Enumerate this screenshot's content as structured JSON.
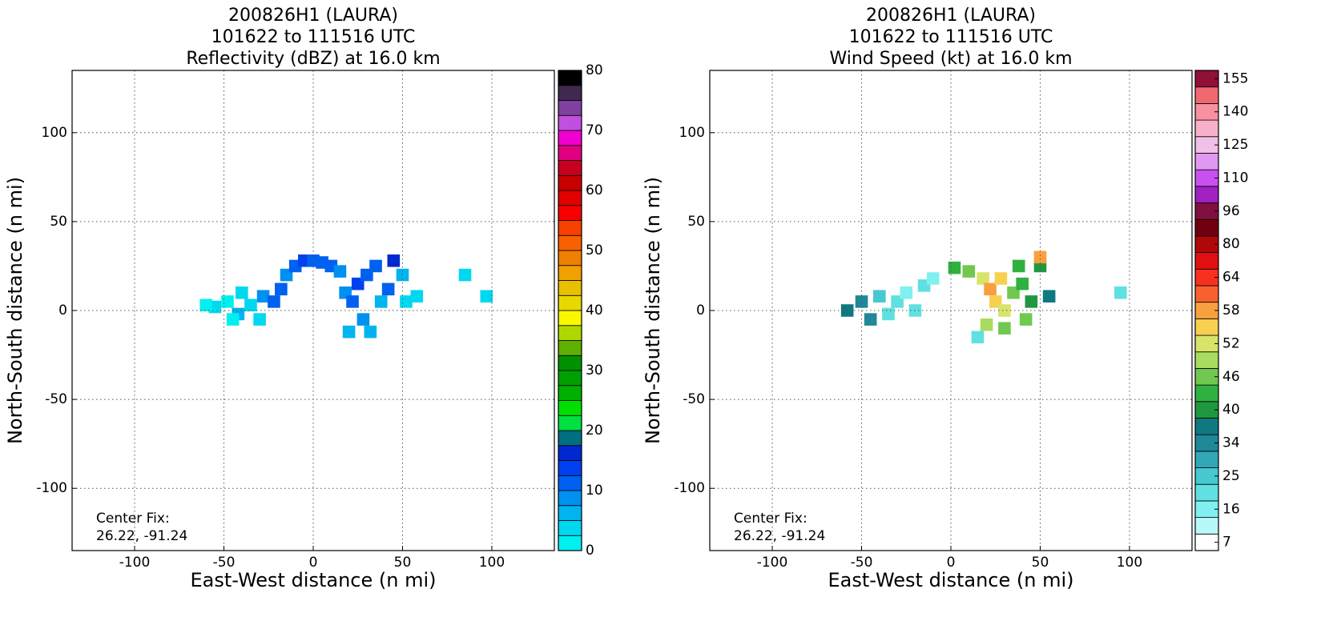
{
  "chart_data": [
    {
      "type": "heatmap",
      "title": [
        "200826H1 (LAURA)",
        "101622 to 111516 UTC",
        "Reflectivity (dBZ) at 16.0 km"
      ],
      "xlabel": "East-West distance (n mi)",
      "ylabel": "North-South distance (n mi)",
      "annotation": [
        "Center Fix:",
        "26.22, -91.24"
      ],
      "xlim": [
        -135,
        135
      ],
      "ylim": [
        -135,
        135
      ],
      "xticks": [
        -100,
        -50,
        0,
        50,
        100
      ],
      "yticks": [
        -100,
        -50,
        0,
        50,
        100
      ],
      "grid": true,
      "colorbar": {
        "lim": [
          0,
          80
        ],
        "ticks": [
          0,
          10,
          20,
          30,
          40,
          50,
          60,
          70,
          80
        ],
        "colors": [
          "#00f0f0",
          "#00d8f0",
          "#00b4f0",
          "#0090f0",
          "#0060f0",
          "#0040f0",
          "#0028d0",
          "#007080",
          "#00e040",
          "#00e000",
          "#00b000",
          "#00a000",
          "#009000",
          "#60b000",
          "#b0d800",
          "#f8f800",
          "#e8d800",
          "#e8c000",
          "#f0a000",
          "#f08000",
          "#f86000",
          "#f84000",
          "#f80000",
          "#e00000",
          "#c80000",
          "#c80020",
          "#e00080",
          "#f000d0",
          "#c050e0",
          "#8040a0",
          "#402850",
          "#000000"
        ]
      },
      "x": [
        -55,
        -48,
        -42,
        -35,
        -30,
        -28,
        -22,
        -18,
        -15,
        -10,
        -5,
        0,
        5,
        10,
        15,
        18,
        22,
        25,
        30,
        28,
        32,
        38,
        42,
        45,
        50,
        52,
        58,
        85,
        97,
        -60,
        -40,
        -45,
        20,
        35
      ],
      "y": [
        2,
        5,
        -2,
        3,
        -5,
        8,
        5,
        12,
        20,
        25,
        28,
        28,
        27,
        25,
        22,
        10,
        5,
        15,
        20,
        -5,
        -12,
        5,
        12,
        28,
        20,
        5,
        8,
        20,
        8,
        3,
        10,
        -5,
        -12,
        25
      ],
      "values": [
        3,
        2,
        5,
        4,
        3,
        8,
        10,
        12,
        8,
        12,
        13,
        12,
        11,
        12,
        9,
        8,
        10,
        13,
        10,
        8,
        6,
        7,
        11,
        16,
        5,
        4,
        3,
        3,
        3,
        2,
        3,
        2,
        5,
        12
      ]
    },
    {
      "type": "heatmap",
      "title": [
        "200826H1 (LAURA)",
        "101622 to 111516 UTC",
        "Wind Speed (kt) at 16.0 km"
      ],
      "xlabel": "East-West distance (n mi)",
      "ylabel": "North-South distance (n mi)",
      "annotation": [
        "Center Fix:",
        "26.22, -91.24"
      ],
      "xlim": [
        -135,
        135
      ],
      "ylim": [
        -135,
        135
      ],
      "xticks": [
        -100,
        -50,
        0,
        50,
        100
      ],
      "yticks": [
        -100,
        -50,
        0,
        50,
        100
      ],
      "grid": true,
      "colorbar": {
        "ticks": [
          7,
          16,
          25,
          34,
          40,
          46,
          52,
          58,
          64,
          80,
          96,
          110,
          125,
          140,
          155
        ],
        "colors": [
          "#ffffff",
          "#b8f8f8",
          "#80f0f0",
          "#60e0e0",
          "#48c8d0",
          "#30a8b8",
          "#208898",
          "#107880",
          "#209840",
          "#30b040",
          "#70c850",
          "#a8dc60",
          "#d8e468",
          "#f8d050",
          "#f8a040",
          "#f86030",
          "#f83020",
          "#e01010",
          "#b00808",
          "#700010",
          "#801040",
          "#a020c0",
          "#c850f0",
          "#e098f0",
          "#f0c0e8",
          "#f8b0c8",
          "#f890a0",
          "#f06870",
          "#901038"
        ]
      },
      "x": [
        -58,
        -50,
        -45,
        -40,
        -35,
        -30,
        -25,
        -20,
        -15,
        -10,
        2,
        10,
        18,
        22,
        25,
        28,
        30,
        35,
        40,
        42,
        45,
        50,
        50,
        55,
        20,
        15,
        95,
        38,
        30
      ],
      "y": [
        0,
        5,
        -5,
        8,
        -2,
        5,
        10,
        0,
        14,
        18,
        24,
        22,
        18,
        12,
        5,
        18,
        0,
        10,
        15,
        -5,
        5,
        25,
        30,
        8,
        -8,
        -15,
        10,
        25,
        -10
      ],
      "values": [
        38,
        36,
        34,
        26,
        24,
        22,
        20,
        24,
        22,
        20,
        44,
        46,
        52,
        58,
        56,
        55,
        52,
        48,
        44,
        46,
        40,
        42,
        60,
        38,
        50,
        22,
        24,
        44,
        48
      ]
    }
  ]
}
